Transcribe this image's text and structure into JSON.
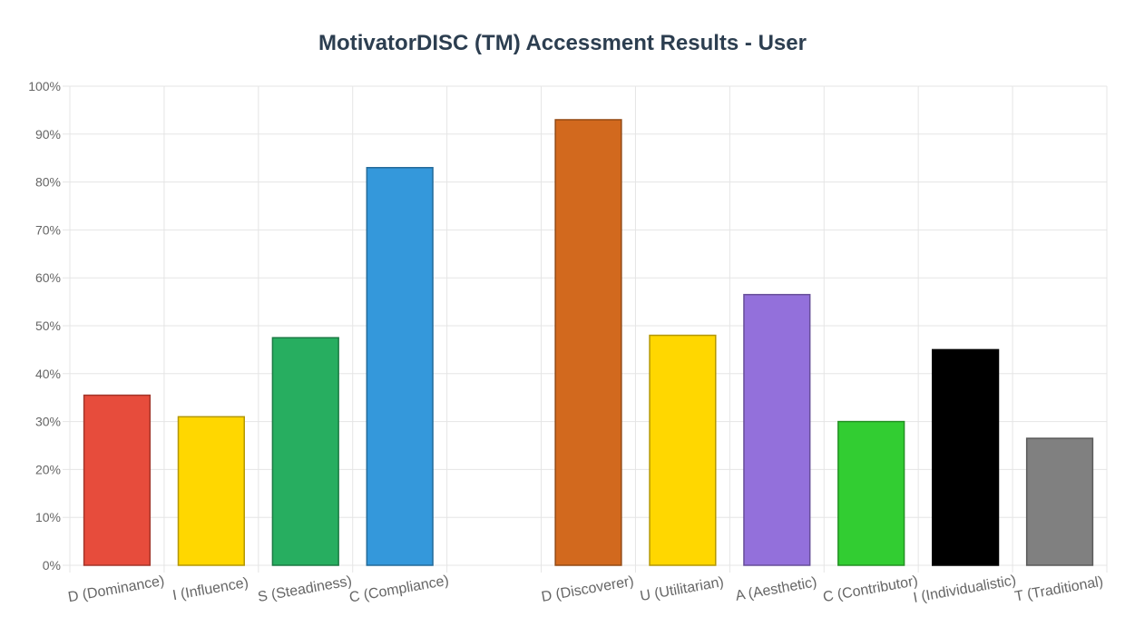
{
  "chart_data": {
    "type": "bar",
    "title": "MotivatorDISC (TM) Accessment Results - User",
    "xlabel": "",
    "ylabel": "",
    "ylim": [
      0,
      100
    ],
    "y_ticks": [
      "0%",
      "10%",
      "20%",
      "30%",
      "40%",
      "50%",
      "60%",
      "70%",
      "80%",
      "90%",
      "100%"
    ],
    "grid": true,
    "categories": [
      "D (Dominance)",
      "I (Influence)",
      "S (Steadiness)",
      "C (Compliance)",
      "",
      "D (Discoverer)",
      "U (Utilitarian)",
      "A (Aesthetic)",
      "C (Contributor)",
      "I (Individualistic)",
      "T (Traditional)"
    ],
    "values": [
      35.5,
      31,
      47.5,
      83,
      null,
      93,
      48,
      56.5,
      30,
      45,
      26.5
    ],
    "colors": [
      "#e74c3c",
      "#ffd700",
      "#27ae60",
      "#3498db",
      null,
      "#d2691e",
      "#ffd700",
      "#9370db",
      "#32cd32",
      "#000000",
      "#808080"
    ]
  }
}
